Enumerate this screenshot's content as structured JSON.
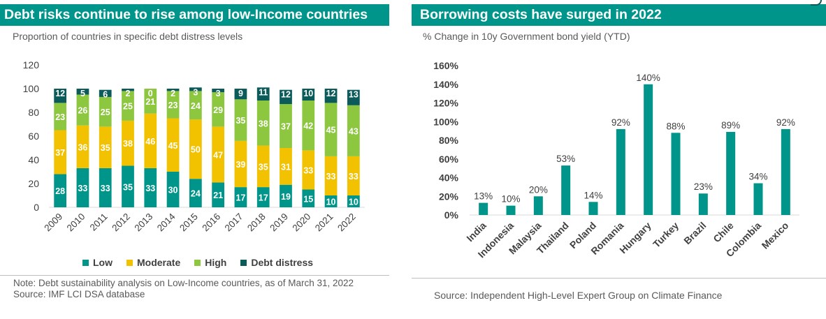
{
  "left": {
    "title": "Debt risks continue to rise among low-Income countries",
    "subtitle": "Proportion of countries in specific debt distress levels",
    "note_line1": "Note: Debt sustainability analysis on Low-Income countries, as of March 31, 2022",
    "note_line2": "Source: IMF LCI DSA database"
  },
  "right": {
    "title": "Borrowing costs have surged in 2022",
    "subtitle": "% Change in 10y Government bond yield (YTD)",
    "source": "Source: Independent High-Level Expert Group on Climate Finance"
  },
  "colors": {
    "low": "#00958a",
    "moderate": "#f2c200",
    "high": "#8dc63f",
    "distress": "#0b5b5a",
    "bar_right": "#00958a",
    "title_bg": "#00958a"
  },
  "chart_data": [
    {
      "type": "bar",
      "stacked": true,
      "title": "Debt risks continue to rise among low-Income countries",
      "subtitle": "Proportion of countries in specific debt distress levels",
      "categories": [
        "2009",
        "2010",
        "2011",
        "2012",
        "2013",
        "2014",
        "2015",
        "2016",
        "2017",
        "2018",
        "2019",
        "2020",
        "2021",
        "2022"
      ],
      "series": [
        {
          "name": "Low",
          "values": [
            28,
            33,
            33,
            35,
            33,
            30,
            24,
            21,
            17,
            17,
            19,
            15,
            10,
            10
          ]
        },
        {
          "name": "Moderate",
          "values": [
            37,
            36,
            35,
            38,
            46,
            45,
            50,
            47,
            39,
            35,
            31,
            33,
            33,
            33
          ]
        },
        {
          "name": "High",
          "values": [
            23,
            26,
            25,
            25,
            21,
            23,
            24,
            29,
            35,
            38,
            37,
            42,
            45,
            43
          ]
        },
        {
          "name": "Debt distress",
          "values": [
            12,
            5,
            6,
            2,
            0,
            2,
            3,
            3,
            9,
            11,
            12,
            10,
            12,
            13
          ]
        }
      ],
      "yticks": [
        "0",
        "20",
        "40",
        "60",
        "80",
        "100",
        "120"
      ],
      "ylim": [
        0,
        120
      ],
      "legend": "bottom"
    },
    {
      "type": "bar",
      "title": "Borrowing costs have surged in 2022",
      "subtitle": "% Change in 10y Government bond yield (YTD)",
      "categories": [
        "India",
        "Indonesia",
        "Malaysia",
        "Thailand",
        "Poland",
        "Romania",
        "Hungary",
        "Turkey",
        "Brazil",
        "Chile",
        "Colombia",
        "Mexico"
      ],
      "values": [
        13,
        10,
        20,
        53,
        14,
        92,
        140,
        88,
        23,
        89,
        34,
        92
      ],
      "labels": [
        "13%",
        "10%",
        "20%",
        "53%",
        "14%",
        "92%",
        "140%",
        "88%",
        "23%",
        "89%",
        "34%",
        "92%"
      ],
      "yticks": [
        "0%",
        "20%",
        "40%",
        "60%",
        "80%",
        "100%",
        "120%",
        "140%",
        "160%"
      ],
      "ylim": [
        0,
        160
      ]
    }
  ]
}
